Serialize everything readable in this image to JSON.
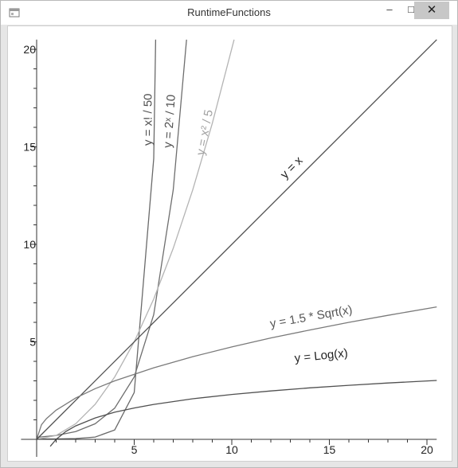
{
  "window": {
    "title": "RuntimeFunctions",
    "controls": {
      "minimize": "–",
      "maximize": "□",
      "close": "✕"
    },
    "icons": {
      "app": "window-app-icon",
      "minimize": "minimize-icon",
      "maximize": "maximize-icon",
      "close": "close-icon"
    }
  },
  "chart_data": {
    "type": "line",
    "title": "",
    "xlabel": "",
    "ylabel": "",
    "xlim": [
      0,
      20.5
    ],
    "ylim": [
      0,
      20.5
    ],
    "x_ticks": [
      5,
      10,
      15,
      20
    ],
    "y_ticks": [
      5,
      10,
      15,
      20
    ],
    "x_tick_labels": [
      "5",
      "10",
      "15",
      "20"
    ],
    "y_tick_labels": [
      "5",
      "10",
      "15",
      "20"
    ],
    "grid": false,
    "series": [
      {
        "name": "y = x! / 50",
        "color": "#6a6a6a",
        "x": [
          0,
          1,
          2,
          3,
          4,
          5,
          6,
          6.1
        ],
        "y": [
          0.02,
          0.02,
          0.04,
          0.12,
          0.48,
          2.4,
          14.4,
          20.5
        ]
      },
      {
        "name": "y = 2ˣ / 10",
        "color": "#6e6e6e",
        "x": [
          0,
          1,
          2,
          3,
          4,
          5,
          6,
          7,
          7.68
        ],
        "y": [
          0.1,
          0.2,
          0.4,
          0.8,
          1.6,
          3.2,
          6.4,
          12.8,
          20.5
        ]
      },
      {
        "name": "y = x² / 5",
        "color": "#b4b4b4",
        "x": [
          0,
          1,
          2,
          3,
          4,
          5,
          6,
          7,
          8,
          9,
          10.12
        ],
        "y": [
          0,
          0.2,
          0.8,
          1.8,
          3.2,
          5,
          7.2,
          9.8,
          12.8,
          16.2,
          20.5
        ]
      },
      {
        "name": "y = x",
        "color": "#505050",
        "x": [
          0,
          20.5
        ],
        "y": [
          0,
          20.5
        ]
      },
      {
        "name": "y = 1.5 * Sqrt(x)",
        "color": "#7a7a7a",
        "x": [
          0,
          0.25,
          0.5,
          1,
          2,
          3,
          4,
          6,
          8,
          10,
          12,
          14,
          16,
          18,
          20.5
        ],
        "y": [
          0,
          0.75,
          1.06,
          1.5,
          2.12,
          2.6,
          3,
          3.67,
          4.24,
          4.74,
          5.2,
          5.61,
          6,
          6.36,
          6.79
        ]
      },
      {
        "name": "y = Log(x)",
        "color": "#505050",
        "x": [
          0.7,
          1,
          1.5,
          2,
          3,
          4,
          5,
          6,
          8,
          10,
          12,
          14,
          16,
          18,
          20.5
        ],
        "y": [
          -0.36,
          0,
          0.41,
          0.69,
          1.1,
          1.39,
          1.61,
          1.79,
          2.08,
          2.3,
          2.48,
          2.64,
          2.77,
          2.89,
          3.02
        ]
      }
    ],
    "annotations": [
      {
        "text": "y = x! / 50",
        "series": 0,
        "color": "#505050"
      },
      {
        "text": "y = 2ˣ / 10",
        "series": 1,
        "color": "#505050"
      },
      {
        "text": "y = x² / 5",
        "series": 2,
        "color": "#a0a0a0"
      },
      {
        "text": "y = x",
        "series": 3,
        "color": "#222222"
      },
      {
        "text": "y = 1.5 * Sqrt(x)",
        "series": 4,
        "color": "#555555"
      },
      {
        "text": "y = Log(x)",
        "series": 5,
        "color": "#222222"
      }
    ]
  }
}
